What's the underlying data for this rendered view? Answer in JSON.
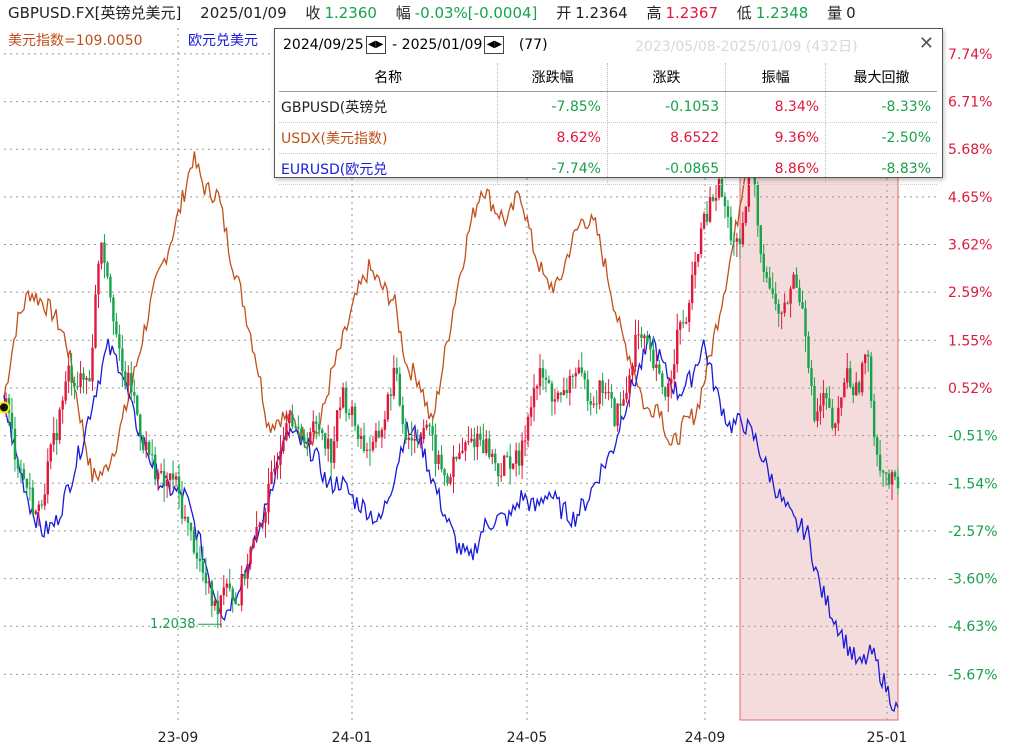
{
  "header": {
    "symbol": "GBPUSD.FX[英镑兑美元]",
    "date": "2025/01/09",
    "close_label": "收",
    "close": "1.2360",
    "change_label": "幅",
    "change": "-0.03%[-0.0004]",
    "open_label": "开",
    "open": "1.2364",
    "high_label": "高",
    "high": "1.2367",
    "low_label": "低",
    "low": "1.2348",
    "volume_label": "量",
    "volume": "0"
  },
  "series_labels": {
    "usdx": "美元指数=109.0050",
    "eurusd": "欧元兑美元"
  },
  "panel": {
    "range_start": "2024/09/25",
    "range_end": "2025/01/09",
    "bars": "(77)",
    "ghost_range": "2023/05/08-2025/01/09 (432日)",
    "close_icon": "close-icon",
    "columns": [
      "名称",
      "涨跌幅",
      "涨跌",
      "振幅",
      "最大回撤"
    ],
    "rows": [
      {
        "name": "GBPUSD(英镑兑",
        "pct": "-7.85%",
        "chg": "-0.1053",
        "amp": "8.34%",
        "mdd": "-8.33%",
        "color": "#222222"
      },
      {
        "name": "USDX(美元指数)",
        "pct": "8.62%",
        "chg": "8.6522",
        "amp": "9.36%",
        "mdd": "-2.50%",
        "color": "#c0501a"
      },
      {
        "name": "EURUSD(欧元兑",
        "pct": "-7.74%",
        "chg": "-0.0865",
        "amp": "8.86%",
        "mdd": "-8.83%",
        "color": "#1a1adb"
      }
    ]
  },
  "colors": {
    "up": "#e0183c",
    "down": "#17a24b",
    "usdx": "#c0501a",
    "eurusd": "#1a1adb",
    "highlight_fill": "#f5dcdc",
    "highlight_stroke": "#e06a6a"
  },
  "chart_data": {
    "type": "line",
    "x_ticks": [
      "23-09",
      "24-01",
      "24-05",
      "24-09",
      "25-01"
    ],
    "y_ticks": [
      "7.74%",
      "6.71%",
      "5.68%",
      "4.65%",
      "3.62%",
      "2.59%",
      "1.55%",
      "0.52%",
      "-0.51%",
      "-1.54%",
      "-2.57%",
      "-3.60%",
      "-4.63%",
      "-5.67%"
    ],
    "ylim": [
      -6.7,
      8.3
    ],
    "grid": true,
    "low_annotation": "1.2038",
    "highlight_range": [
      "2024/09/25",
      "2025/01/09"
    ],
    "series": [
      {
        "name": "GBPUSD(英镑兑",
        "kind": "candlestick",
        "values": [
          0.2,
          -1.0,
          -1.6,
          -2.3,
          -1.2,
          -0.2,
          0.9,
          0.6,
          0.8,
          3.9,
          2.6,
          0.8,
          0.5,
          -0.6,
          -1.1,
          -1.6,
          -1.4,
          -2.3,
          -2.9,
          -3.7,
          -4.3,
          -3.5,
          -4.2,
          -3.2,
          -2.6,
          -1.8,
          -0.8,
          0.2,
          -0.7,
          -0.4,
          -0.3,
          -0.9,
          0.4,
          -0.1,
          -0.7,
          -0.8,
          -0.2,
          0.9,
          -0.4,
          -0.6,
          -0.2,
          -1.0,
          -1.5,
          -1.0,
          -0.7,
          -0.5,
          -0.8,
          -1.3,
          -1.0,
          -1.1,
          0.3,
          0.8,
          0.4,
          0.2,
          0.9,
          0.6,
          0.3,
          0.6,
          -0.1,
          0.3,
          1.6,
          1.4,
          0.8,
          0.4,
          1.7,
          2.1,
          3.7,
          4.4,
          4.9,
          3.9,
          3.4,
          5.5,
          3.4,
          2.5,
          2.0,
          2.9,
          2.3,
          -0.2,
          0.3,
          -0.5,
          0.9,
          0.4,
          1.3,
          -0.9,
          -1.5,
          -1.6
        ]
      },
      {
        "name": "USDX(美元指数)",
        "kind": "line",
        "values": [
          0.3,
          1.9,
          2.6,
          2.4,
          2.1,
          1.5,
          0.0,
          -1.4,
          -1.3,
          -0.6,
          0.4,
          1.6,
          2.7,
          3.5,
          4.4,
          5.5,
          4.8,
          4.7,
          3.4,
          2.4,
          1.2,
          -0.3,
          -0.1,
          -0.2,
          -0.6,
          -0.4,
          0.8,
          1.6,
          2.5,
          3.1,
          2.7,
          2.4,
          1.0,
          0.7,
          -0.3,
          1.2,
          2.7,
          4.0,
          4.9,
          4.4,
          4.1,
          4.8,
          3.6,
          2.8,
          2.7,
          3.6,
          4.2,
          4.0,
          2.9,
          1.7,
          1.0,
          0.0,
          0.2,
          -0.8,
          -0.3,
          0.0,
          1.1,
          2.4,
          3.7,
          5.5,
          5.4,
          5.8,
          5.4,
          7.1,
          7.8,
          8.0,
          7.2,
          7.5,
          8.0
        ]
      },
      {
        "name": "EURUSD(欧元兑",
        "kind": "line",
        "values": [
          0.2,
          -1.0,
          -2.0,
          -2.6,
          -2.4,
          -1.6,
          -0.7,
          0.4,
          1.4,
          1.0,
          -0.1,
          -0.8,
          -1.5,
          -1.7,
          -1.8,
          -2.7,
          -3.7,
          -4.4,
          -3.8,
          -3.2,
          -2.3,
          -1.2,
          -0.4,
          -0.7,
          -0.9,
          -1.6,
          -1.5,
          -1.9,
          -2.1,
          -2.4,
          -1.5,
          -0.4,
          -0.5,
          -1.4,
          -2.2,
          -2.9,
          -3.2,
          -2.5,
          -2.3,
          -2.3,
          -1.8,
          -2.1,
          -1.7,
          -2.1,
          -2.3,
          -1.9,
          -1.3,
          -0.8,
          0.2,
          0.9,
          1.6,
          0.9,
          0.4,
          0.7,
          1.5,
          0.4,
          -0.3,
          -0.2,
          -0.6,
          -1.3,
          -1.9,
          -2.4,
          -2.6,
          -3.8,
          -4.4,
          -5.0,
          -5.5,
          -5.2,
          -5.9,
          -6.5
        ]
      }
    ]
  }
}
